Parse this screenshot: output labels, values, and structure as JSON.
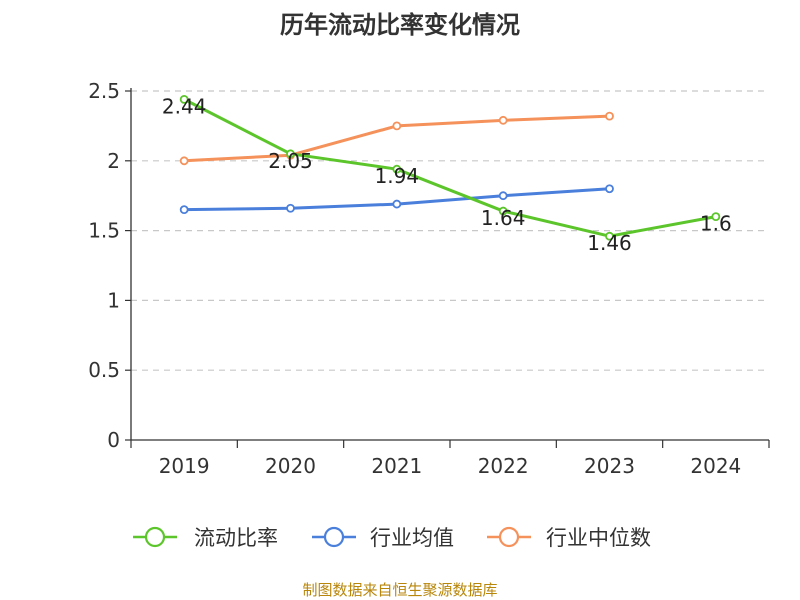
{
  "chart_data": {
    "type": "line",
    "title": "历年流动比率变化情况",
    "categories": [
      "2019",
      "2020",
      "2021",
      "2022",
      "2023",
      "2024"
    ],
    "ylim": [
      0,
      2.5
    ],
    "yticks": [
      "0",
      "0.5",
      "1",
      "1.5",
      "2",
      "2.5"
    ],
    "grid": true,
    "legend_position": "bottom",
    "series": [
      {
        "name": "流动比率",
        "color": "#5cc52b",
        "values": [
          2.44,
          2.05,
          1.94,
          1.64,
          1.46,
          1.6
        ],
        "labels": [
          "2.44",
          "2.05",
          "1.94",
          "1.64",
          "1.46",
          "1.6"
        ]
      },
      {
        "name": "行业均值",
        "color": "#4a7fdc",
        "values": [
          1.65,
          1.66,
          1.69,
          1.75,
          1.8,
          null
        ]
      },
      {
        "name": "行业中位数",
        "color": "#f5915a",
        "values": [
          2.0,
          2.04,
          2.25,
          2.29,
          2.32,
          null
        ]
      }
    ],
    "source": "制图数据来自恒生聚源数据库"
  }
}
